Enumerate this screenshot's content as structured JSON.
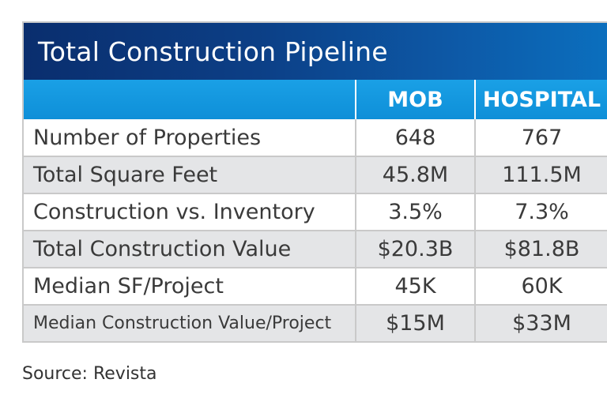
{
  "chart_data": {
    "type": "table",
    "title": "Total Construction Pipeline",
    "columns": [
      "",
      "MOB",
      "HOSPITAL"
    ],
    "rows": [
      {
        "label": "Number of Properties",
        "mob": "648",
        "hospital": "767"
      },
      {
        "label": "Total Square Feet",
        "mob": "45.8M",
        "hospital": "111.5M"
      },
      {
        "label": "Construction vs. Inventory",
        "mob": "3.5%",
        "hospital": "7.3%"
      },
      {
        "label": "Total Construction Value",
        "mob": "$20.3B",
        "hospital": "$81.8B"
      },
      {
        "label": "Median SF/Project",
        "mob": "45K",
        "hospital": "60K"
      },
      {
        "label": "Median Construction Value/Project",
        "mob": "$15M",
        "hospital": "$33M"
      }
    ],
    "source": "Source: Revista"
  },
  "colors": {
    "title_bar": "#0c3f86",
    "header_bar": "#1aa0e6",
    "row_alt": "#e4e5e7"
  }
}
